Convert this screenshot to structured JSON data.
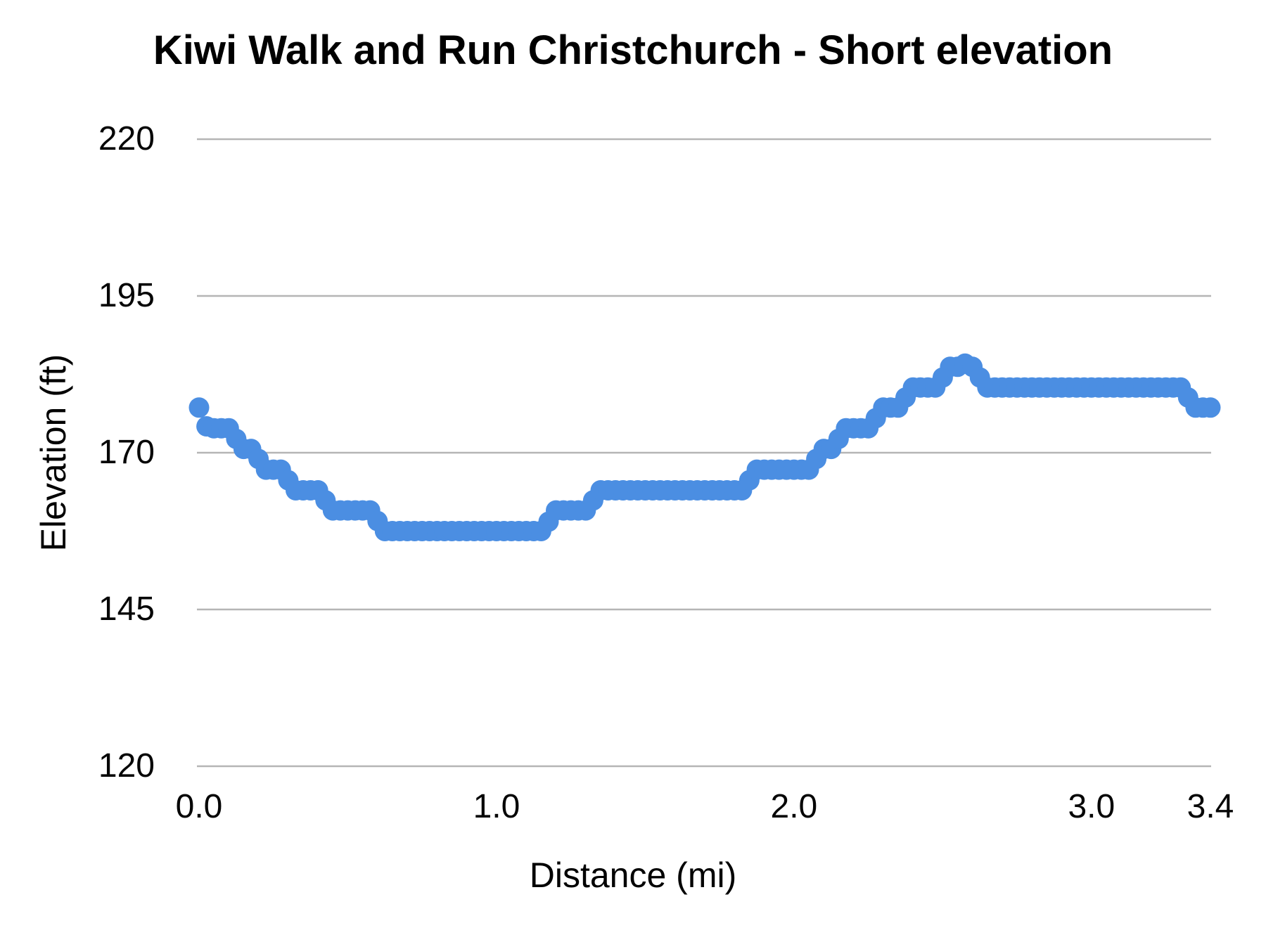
{
  "page": {
    "background": "#ffffff"
  },
  "chart": {
    "point_color": "#4b8ee2",
    "gridline_color": "#b5b5b5",
    "text_color": "#000000"
  },
  "chart_data": {
    "type": "scatter",
    "title": "Kiwi Walk and Run Christchurch - Short elevation",
    "xlabel": "Distance (mi)",
    "ylabel": "Elevation (ft)",
    "xlim": [
      0,
      3.4
    ],
    "ylim": [
      120,
      220
    ],
    "grid": "horizontal-only",
    "legend": "none",
    "y_ticks": [
      {
        "label": "220",
        "value": 220
      },
      {
        "label": "195",
        "value": 195
      },
      {
        "label": "170",
        "value": 170
      },
      {
        "label": "145",
        "value": 145
      },
      {
        "label": "120",
        "value": 120
      }
    ],
    "x_ticks": [
      {
        "label": "0.0",
        "value": 0.0
      },
      {
        "label": "1.0",
        "value": 1.0
      },
      {
        "label": "2.0",
        "value": 2.0
      },
      {
        "label": "3.0",
        "value": 3.0
      },
      {
        "label": "3.4",
        "value": 3.4
      }
    ],
    "series": [
      {
        "name": "elevation",
        "points": [
          [
            0.0,
            177.2
          ],
          [
            0.025,
            174.2
          ],
          [
            0.05,
            173.9
          ],
          [
            0.075,
            173.9
          ],
          [
            0.1,
            173.9
          ],
          [
            0.125,
            172.2
          ],
          [
            0.15,
            170.6
          ],
          [
            0.175,
            170.6
          ],
          [
            0.2,
            169.0
          ],
          [
            0.225,
            167.3
          ],
          [
            0.25,
            167.3
          ],
          [
            0.275,
            167.3
          ],
          [
            0.3,
            165.6
          ],
          [
            0.325,
            164.0
          ],
          [
            0.35,
            164.0
          ],
          [
            0.375,
            164.0
          ],
          [
            0.4,
            164.0
          ],
          [
            0.425,
            162.4
          ],
          [
            0.45,
            160.8
          ],
          [
            0.475,
            160.8
          ],
          [
            0.5,
            160.8
          ],
          [
            0.525,
            160.8
          ],
          [
            0.55,
            160.8
          ],
          [
            0.575,
            160.8
          ],
          [
            0.6,
            159.1
          ],
          [
            0.625,
            157.5
          ],
          [
            0.65,
            157.5
          ],
          [
            0.675,
            157.5
          ],
          [
            0.7,
            157.5
          ],
          [
            0.725,
            157.5
          ],
          [
            0.75,
            157.5
          ],
          [
            0.775,
            157.5
          ],
          [
            0.8,
            157.5
          ],
          [
            0.825,
            157.5
          ],
          [
            0.85,
            157.5
          ],
          [
            0.875,
            157.5
          ],
          [
            0.9,
            157.5
          ],
          [
            0.925,
            157.5
          ],
          [
            0.95,
            157.5
          ],
          [
            0.975,
            157.5
          ],
          [
            1.0,
            157.5
          ],
          [
            1.025,
            157.5
          ],
          [
            1.05,
            157.5
          ],
          [
            1.075,
            157.5
          ],
          [
            1.1,
            157.5
          ],
          [
            1.125,
            157.5
          ],
          [
            1.15,
            157.5
          ],
          [
            1.175,
            159.0
          ],
          [
            1.2,
            160.8
          ],
          [
            1.225,
            160.8
          ],
          [
            1.25,
            160.8
          ],
          [
            1.275,
            160.8
          ],
          [
            1.3,
            160.8
          ],
          [
            1.325,
            162.4
          ],
          [
            1.35,
            164.0
          ],
          [
            1.375,
            164.0
          ],
          [
            1.4,
            164.0
          ],
          [
            1.425,
            164.0
          ],
          [
            1.45,
            164.0
          ],
          [
            1.475,
            164.0
          ],
          [
            1.5,
            164.0
          ],
          [
            1.525,
            164.0
          ],
          [
            1.55,
            164.0
          ],
          [
            1.575,
            164.0
          ],
          [
            1.6,
            164.0
          ],
          [
            1.625,
            164.0
          ],
          [
            1.65,
            164.0
          ],
          [
            1.675,
            164.0
          ],
          [
            1.7,
            164.0
          ],
          [
            1.725,
            164.0
          ],
          [
            1.75,
            164.0
          ],
          [
            1.775,
            164.0
          ],
          [
            1.8,
            164.0
          ],
          [
            1.825,
            164.0
          ],
          [
            1.85,
            165.6
          ],
          [
            1.875,
            167.3
          ],
          [
            1.9,
            167.3
          ],
          [
            1.925,
            167.3
          ],
          [
            1.95,
            167.3
          ],
          [
            1.975,
            167.3
          ],
          [
            2.0,
            167.3
          ],
          [
            2.025,
            167.3
          ],
          [
            2.05,
            167.3
          ],
          [
            2.075,
            169.0
          ],
          [
            2.1,
            170.6
          ],
          [
            2.125,
            170.6
          ],
          [
            2.15,
            172.2
          ],
          [
            2.175,
            173.9
          ],
          [
            2.2,
            173.9
          ],
          [
            2.225,
            173.9
          ],
          [
            2.25,
            173.9
          ],
          [
            2.275,
            175.5
          ],
          [
            2.3,
            177.2
          ],
          [
            2.325,
            177.2
          ],
          [
            2.35,
            177.2
          ],
          [
            2.375,
            178.8
          ],
          [
            2.4,
            180.4
          ],
          [
            2.425,
            180.4
          ],
          [
            2.45,
            180.4
          ],
          [
            2.475,
            180.4
          ],
          [
            2.5,
            182.0
          ],
          [
            2.525,
            183.7
          ],
          [
            2.55,
            183.7
          ],
          [
            2.575,
            184.2
          ],
          [
            2.6,
            183.7
          ],
          [
            2.625,
            182.0
          ],
          [
            2.65,
            180.4
          ],
          [
            2.675,
            180.4
          ],
          [
            2.7,
            180.4
          ],
          [
            2.725,
            180.4
          ],
          [
            2.75,
            180.4
          ],
          [
            2.775,
            180.4
          ],
          [
            2.8,
            180.4
          ],
          [
            2.825,
            180.4
          ],
          [
            2.85,
            180.4
          ],
          [
            2.875,
            180.4
          ],
          [
            2.9,
            180.4
          ],
          [
            2.925,
            180.4
          ],
          [
            2.95,
            180.4
          ],
          [
            2.975,
            180.4
          ],
          [
            3.0,
            180.4
          ],
          [
            3.025,
            180.4
          ],
          [
            3.05,
            180.4
          ],
          [
            3.075,
            180.4
          ],
          [
            3.1,
            180.4
          ],
          [
            3.125,
            180.4
          ],
          [
            3.15,
            180.4
          ],
          [
            3.175,
            180.4
          ],
          [
            3.2,
            180.4
          ],
          [
            3.225,
            180.4
          ],
          [
            3.25,
            180.4
          ],
          [
            3.275,
            180.4
          ],
          [
            3.3,
            180.4
          ],
          [
            3.325,
            178.8
          ],
          [
            3.35,
            177.2
          ],
          [
            3.375,
            177.2
          ],
          [
            3.4,
            177.2
          ]
        ]
      }
    ]
  }
}
